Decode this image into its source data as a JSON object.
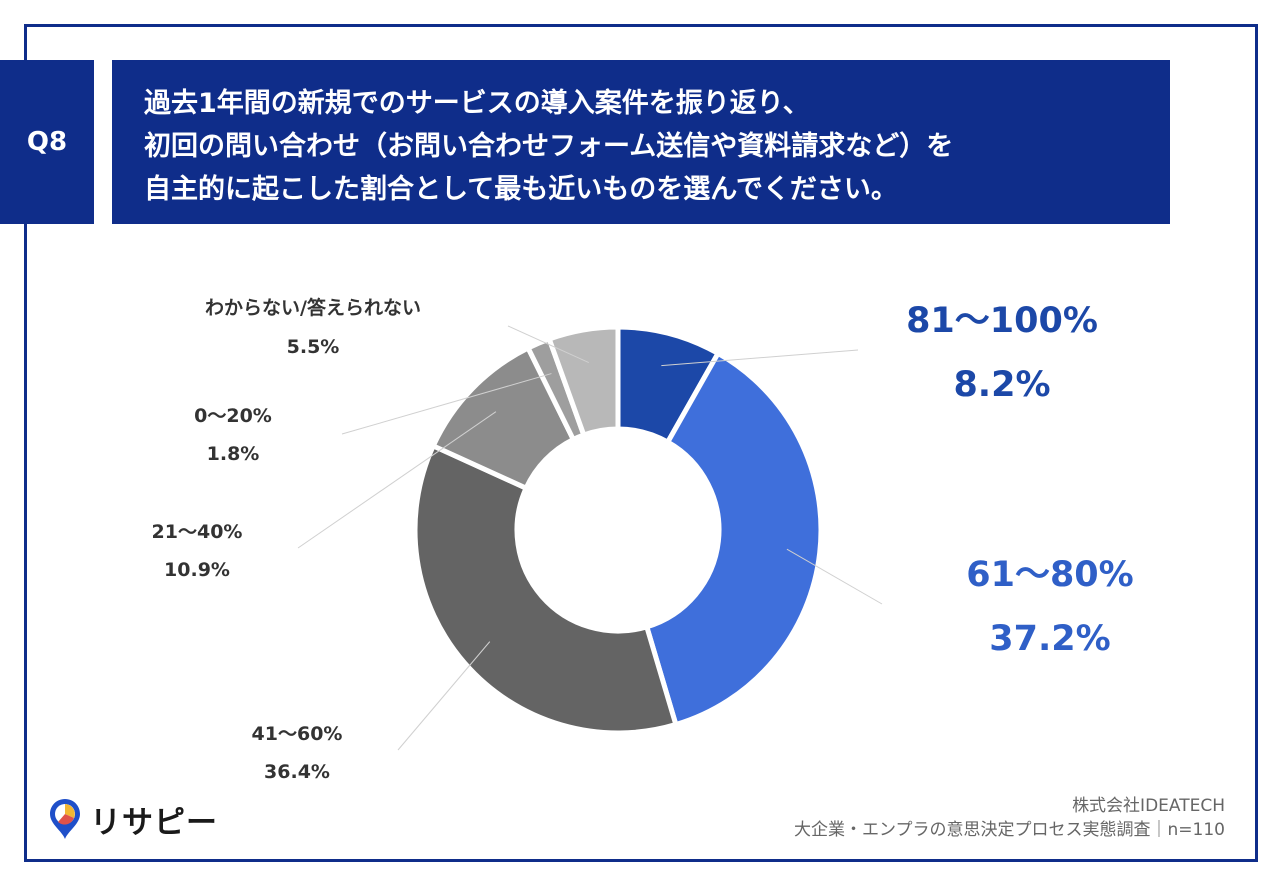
{
  "question": {
    "badge": "Q8",
    "lines": [
      "過去1年間の新規でのサービスの導入案件を振り返り、",
      "初回の問い合わせ（お問い合わせフォーム送信や資料請求など）を",
      "自主的に起こした割合として最も近いものを選んでください。"
    ]
  },
  "chart_data": {
    "type": "pie",
    "donut": true,
    "slices": [
      {
        "label": "81〜100%",
        "value": 8.2,
        "display": "8.2%",
        "color": "#1c48a8"
      },
      {
        "label": "61〜80%",
        "value": 37.2,
        "display": "37.2%",
        "color": "#3f6fdb"
      },
      {
        "label": "41〜60%",
        "value": 36.4,
        "display": "36.4%",
        "color": "#646464"
      },
      {
        "label": "21〜40%",
        "value": 10.9,
        "display": "10.9%",
        "color": "#8c8c8c"
      },
      {
        "label": "0〜20%",
        "value": 1.8,
        "display": "1.8%",
        "color": "#9e9e9e"
      },
      {
        "label": "わからない/答えられない",
        "value": 5.5,
        "display": "5.5%",
        "color": "#b8b8b8"
      }
    ]
  },
  "logo": {
    "text": "リサピー"
  },
  "footer": {
    "company": "株式会社IDEATECH",
    "survey": "大企業・エンプラの意思決定プロセス実態調査｜n=110"
  }
}
